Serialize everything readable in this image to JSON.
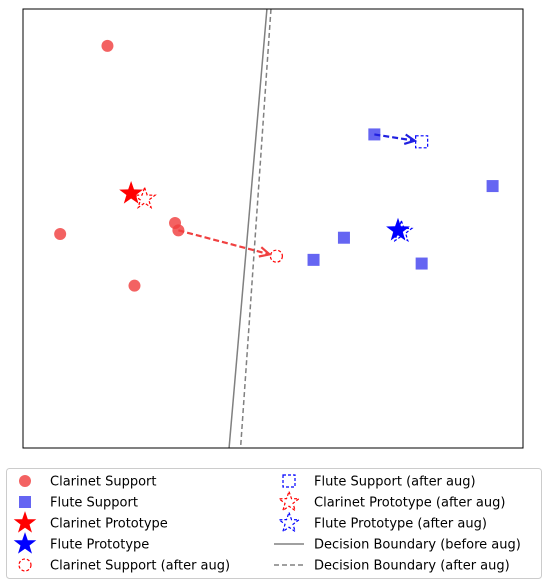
{
  "chart_data": {
    "type": "scatter",
    "title": "",
    "xlabel": "",
    "ylabel": "",
    "grid": false,
    "legend_placement": "bottom (below plot), two columns",
    "xlim": [
      -3.55,
      3.85
    ],
    "ylim": [
      -3.1,
      2.85
    ],
    "series": [
      {
        "name": "Clarinet Support",
        "marker": "circle-filled",
        "color": "#f04040",
        "points": [
          [
            -2.3,
            2.35
          ],
          [
            -3.0,
            -0.2
          ],
          [
            -1.9,
            -0.9
          ],
          [
            -1.3,
            -0.05
          ],
          [
            -1.25,
            -0.15
          ]
        ]
      },
      {
        "name": "Flute Support",
        "marker": "square-filled",
        "color": "#4a4af0",
        "points": [
          [
            1.65,
            1.15
          ],
          [
            3.4,
            0.45
          ],
          [
            2.35,
            -0.6
          ],
          [
            1.2,
            -0.25
          ],
          [
            0.75,
            -0.55
          ]
        ]
      },
      {
        "name": "Clarinet Prototype",
        "marker": "star-filled",
        "color": "#ff0000",
        "points": [
          [
            -1.95,
            0.35
          ]
        ]
      },
      {
        "name": "Flute Prototype",
        "marker": "star-filled",
        "color": "#0000ff",
        "points": [
          [
            2.0,
            -0.15
          ]
        ]
      },
      {
        "name": "Clarinet Support (after aug)",
        "marker": "circle-open-dashed",
        "color": "#ff0000",
        "points": [
          [
            0.2,
            -0.5
          ]
        ]
      },
      {
        "name": "Flute Support (after aug)",
        "marker": "square-open-dashed",
        "color": "#0000ff",
        "points": [
          [
            2.35,
            1.05
          ]
        ]
      },
      {
        "name": "Clarinet Prototype (after aug)",
        "marker": "star-open-dashed",
        "color": "#ff0000",
        "points": [
          [
            -1.75,
            0.28
          ]
        ]
      },
      {
        "name": "Flute Prototype (after aug)",
        "marker": "star-open-dashed",
        "color": "#0000ff",
        "points": [
          [
            2.05,
            -0.17
          ]
        ]
      }
    ],
    "arrows": [
      {
        "from": [
          -1.25,
          -0.15
        ],
        "to": [
          0.2,
          -0.5
        ],
        "color": "#f04040"
      },
      {
        "from": [
          1.65,
          1.15
        ],
        "to": [
          2.35,
          1.05
        ],
        "color": "#2020e0"
      }
    ],
    "lines": [
      {
        "name": "Decision Boundary (before aug)",
        "style": "solid",
        "color": "#808080",
        "points": [
          [
            0.06,
            2.85
          ],
          [
            -0.5,
            -3.1
          ]
        ]
      },
      {
        "name": "Decision Boundary (after aug)",
        "style": "dashed",
        "color": "#808080",
        "points": [
          [
            0.12,
            2.85
          ],
          [
            -0.33,
            -3.1
          ]
        ]
      }
    ]
  }
}
